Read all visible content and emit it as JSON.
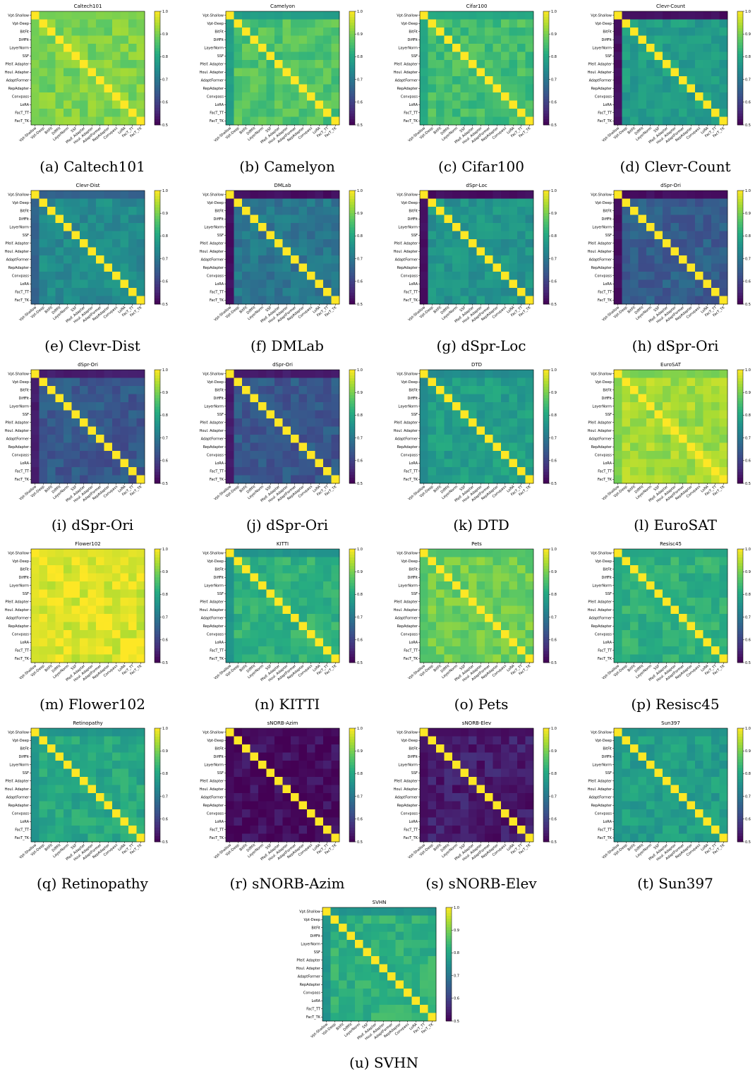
{
  "colormap": "viridis",
  "colorbar_ticks": [
    "0.5",
    "0.6",
    "0.7",
    "0.8",
    "0.9",
    "1.0"
  ],
  "methods": [
    "Vpt-Shallow",
    "Vpt-Deep",
    "BitFit",
    "DiffFit",
    "LayerNorm",
    "SSF",
    "Pfeif. Adapter",
    "Houl. Adapter",
    "AdaptFormer",
    "RepAdapter",
    "Convpass",
    "LoRA",
    "FacT_TT",
    "FacT_TK"
  ],
  "chart_data": [
    {
      "type": "heatmap",
      "title": "Caltech101",
      "caption_label": "(a)",
      "caption_text": "Caltech101",
      "base": 0.9,
      "row0": 0.9,
      "vmin": 0.5,
      "vmax": 1.0
    },
    {
      "type": "heatmap",
      "title": "Camelyon",
      "caption_label": "(b)",
      "caption_text": "Camelyon",
      "base": 0.86,
      "row0": 0.78,
      "vmin": 0.5,
      "vmax": 1.0
    },
    {
      "type": "heatmap",
      "title": "Cifar100",
      "caption_label": "(c)",
      "caption_text": "Cifar100",
      "base": 0.85,
      "row0": 0.8,
      "vmin": 0.5,
      "vmax": 1.0
    },
    {
      "type": "heatmap",
      "title": "Clevr-Count",
      "caption_label": "(d)",
      "caption_text": "Clevr-Count",
      "base": 0.78,
      "row0": 0.52,
      "vmin": 0.5,
      "vmax": 1.0
    },
    {
      "type": "heatmap",
      "title": "Clevr-Dist",
      "caption_label": "(e)",
      "caption_text": "Clevr-Dist",
      "base": 0.74,
      "row0": 0.66,
      "vmin": 0.5,
      "vmax": 1.0
    },
    {
      "type": "heatmap",
      "title": "DMLab",
      "caption_label": "(f)",
      "caption_text": "DMLab",
      "base": 0.7,
      "row0": 0.52,
      "vmin": 0.5,
      "vmax": 1.0
    },
    {
      "type": "heatmap",
      "title": "dSpr-Loc",
      "caption_label": "(g)",
      "caption_text": "dSpr-Loc",
      "base": 0.76,
      "row0": 0.52,
      "vmin": 0.5,
      "vmax": 1.0
    },
    {
      "type": "heatmap",
      "title": "dSpr-Ori",
      "caption_label": "(h)",
      "caption_text": "dSpr-Ori",
      "base": 0.65,
      "row0": 0.52,
      "vmin": 0.5,
      "vmax": 1.0
    },
    {
      "type": "heatmap",
      "title": "dSpr-Ori",
      "caption_label": "(i)",
      "caption_text": "dSpr-Ori",
      "base": 0.64,
      "row0": 0.54,
      "vmin": 0.5,
      "vmax": 1.0
    },
    {
      "type": "heatmap",
      "title": "dSpr-Ori",
      "caption_label": "(j)",
      "caption_text": "dSpr-Ori",
      "base": 0.64,
      "row0": 0.54,
      "vmin": 0.5,
      "vmax": 1.0
    },
    {
      "type": "heatmap",
      "title": "DTD",
      "caption_label": "(k)",
      "caption_text": "DTD",
      "base": 0.78,
      "row0": 0.74,
      "vmin": 0.5,
      "vmax": 1.0
    },
    {
      "type": "heatmap",
      "title": "EuroSAT",
      "caption_label": "(l)",
      "caption_text": "EuroSAT",
      "base": 0.93,
      "row0": 0.9,
      "vmin": 0.5,
      "vmax": 1.0
    },
    {
      "type": "heatmap",
      "title": "Flower102",
      "caption_label": "(m)",
      "caption_text": "Flower102",
      "base": 0.975,
      "row0": 0.975,
      "vmin": 0.5,
      "vmax": 1.0
    },
    {
      "type": "heatmap",
      "title": "KITTI",
      "caption_label": "(n)",
      "caption_text": "KITTI",
      "base": 0.82,
      "row0": 0.76,
      "vmin": 0.5,
      "vmax": 1.0
    },
    {
      "type": "heatmap",
      "title": "Pets",
      "caption_label": "(o)",
      "caption_text": "Pets",
      "base": 0.89,
      "row0": 0.86,
      "vmin": 0.5,
      "vmax": 1.0
    },
    {
      "type": "heatmap",
      "title": "Resisc45",
      "caption_label": "(p)",
      "caption_text": "Resisc45",
      "base": 0.82,
      "row0": 0.8,
      "vmin": 0.5,
      "vmax": 1.0
    },
    {
      "type": "heatmap",
      "title": "Retinopathy",
      "caption_label": "(q)",
      "caption_text": "Retinopathy",
      "base": 0.8,
      "row0": 0.76,
      "vmin": 0.5,
      "vmax": 1.0
    },
    {
      "type": "heatmap",
      "title": "sNORB-Azim",
      "caption_label": "(r)",
      "caption_text": "sNORB-Azim",
      "base": 0.515,
      "row0": 0.51,
      "vmin": 0.5,
      "vmax": 1.0
    },
    {
      "type": "heatmap",
      "title": "sNORB-Elev",
      "caption_label": "(s)",
      "caption_text": "sNORB-Elev",
      "base": 0.54,
      "row0": 0.52,
      "vmin": 0.5,
      "vmax": 1.0
    },
    {
      "type": "heatmap",
      "title": "Sun397",
      "caption_label": "(t)",
      "caption_text": "Sun397",
      "base": 0.78,
      "row0": 0.76,
      "vmin": 0.5,
      "vmax": 1.0
    },
    {
      "type": "heatmap",
      "title": "SVHN",
      "caption_label": "(u)",
      "caption_text": "SVHN",
      "base": 0.82,
      "row0": 0.76,
      "vmin": 0.5,
      "vmax": 1.0
    }
  ]
}
